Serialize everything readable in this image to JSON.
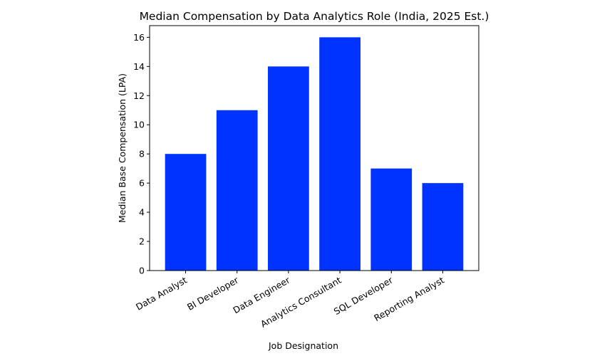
{
  "chart_data": {
    "type": "bar",
    "title": "Median Compensation by Data Analytics Role (India, 2025 Est.)",
    "xlabel": "Job Designation",
    "ylabel": "Median Base Compensation (LPA)",
    "categories": [
      "Data Analyst",
      "BI Developer",
      "Data Engineer",
      "Analytics Consultant",
      "SQL Developer",
      "Reporting Analyst"
    ],
    "values": [
      8,
      11,
      14,
      16,
      7,
      6
    ],
    "ylim": [
      0,
      16.8
    ],
    "yticks": [
      0,
      2,
      4,
      6,
      8,
      10,
      12,
      14,
      16
    ],
    "bar_color": "#0033ff",
    "grid": false,
    "x_tick_rotation": 30
  }
}
